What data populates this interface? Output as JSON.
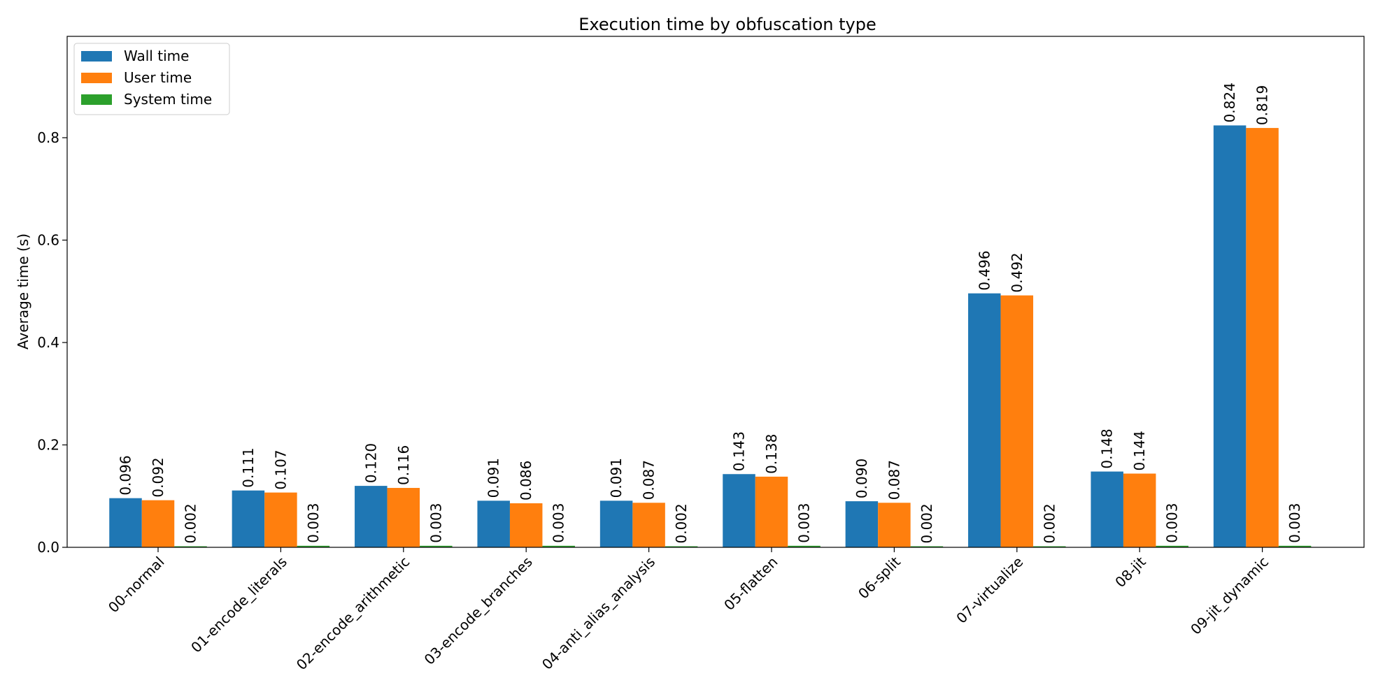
{
  "chart_data": {
    "type": "bar",
    "title": "Execution time by obfuscation type",
    "xlabel": "",
    "ylabel": "Average time (s)",
    "ylim": [
      0,
      1.0
    ],
    "yticks": [
      "0.0",
      "0.2",
      "0.4",
      "0.6",
      "0.8"
    ],
    "legend_position": "top-left",
    "grid": false,
    "categories": [
      "00-normal",
      "01-encode_literals",
      "02-encode_arithmetic",
      "03-encode_branches",
      "04-anti_alias_analysis",
      "05-flatten",
      "06-split",
      "07-virtualize",
      "08-jit",
      "09-jit_dynamic"
    ],
    "series": [
      {
        "name": "Wall time",
        "color": "#1f77b4",
        "values": [
          0.096,
          0.111,
          0.12,
          0.091,
          0.091,
          0.143,
          0.09,
          0.496,
          0.148,
          0.824
        ],
        "labels": [
          "0.096",
          "0.111",
          "0.120",
          "0.091",
          "0.091",
          "0.143",
          "0.090",
          "0.496",
          "0.148",
          "0.824"
        ]
      },
      {
        "name": "User time",
        "color": "#ff7f0e",
        "values": [
          0.092,
          0.107,
          0.116,
          0.086,
          0.087,
          0.138,
          0.087,
          0.492,
          0.144,
          0.819
        ],
        "labels": [
          "0.092",
          "0.107",
          "0.116",
          "0.086",
          "0.087",
          "0.138",
          "0.087",
          "0.492",
          "0.144",
          "0.819"
        ]
      },
      {
        "name": "System time",
        "color": "#2ca02c",
        "values": [
          0.002,
          0.003,
          0.003,
          0.003,
          0.002,
          0.003,
          0.002,
          0.002,
          0.003,
          0.003
        ],
        "labels": [
          "0.002",
          "0.003",
          "0.003",
          "0.003",
          "0.002",
          "0.003",
          "0.002",
          "0.002",
          "0.003",
          "0.003"
        ]
      }
    ]
  }
}
